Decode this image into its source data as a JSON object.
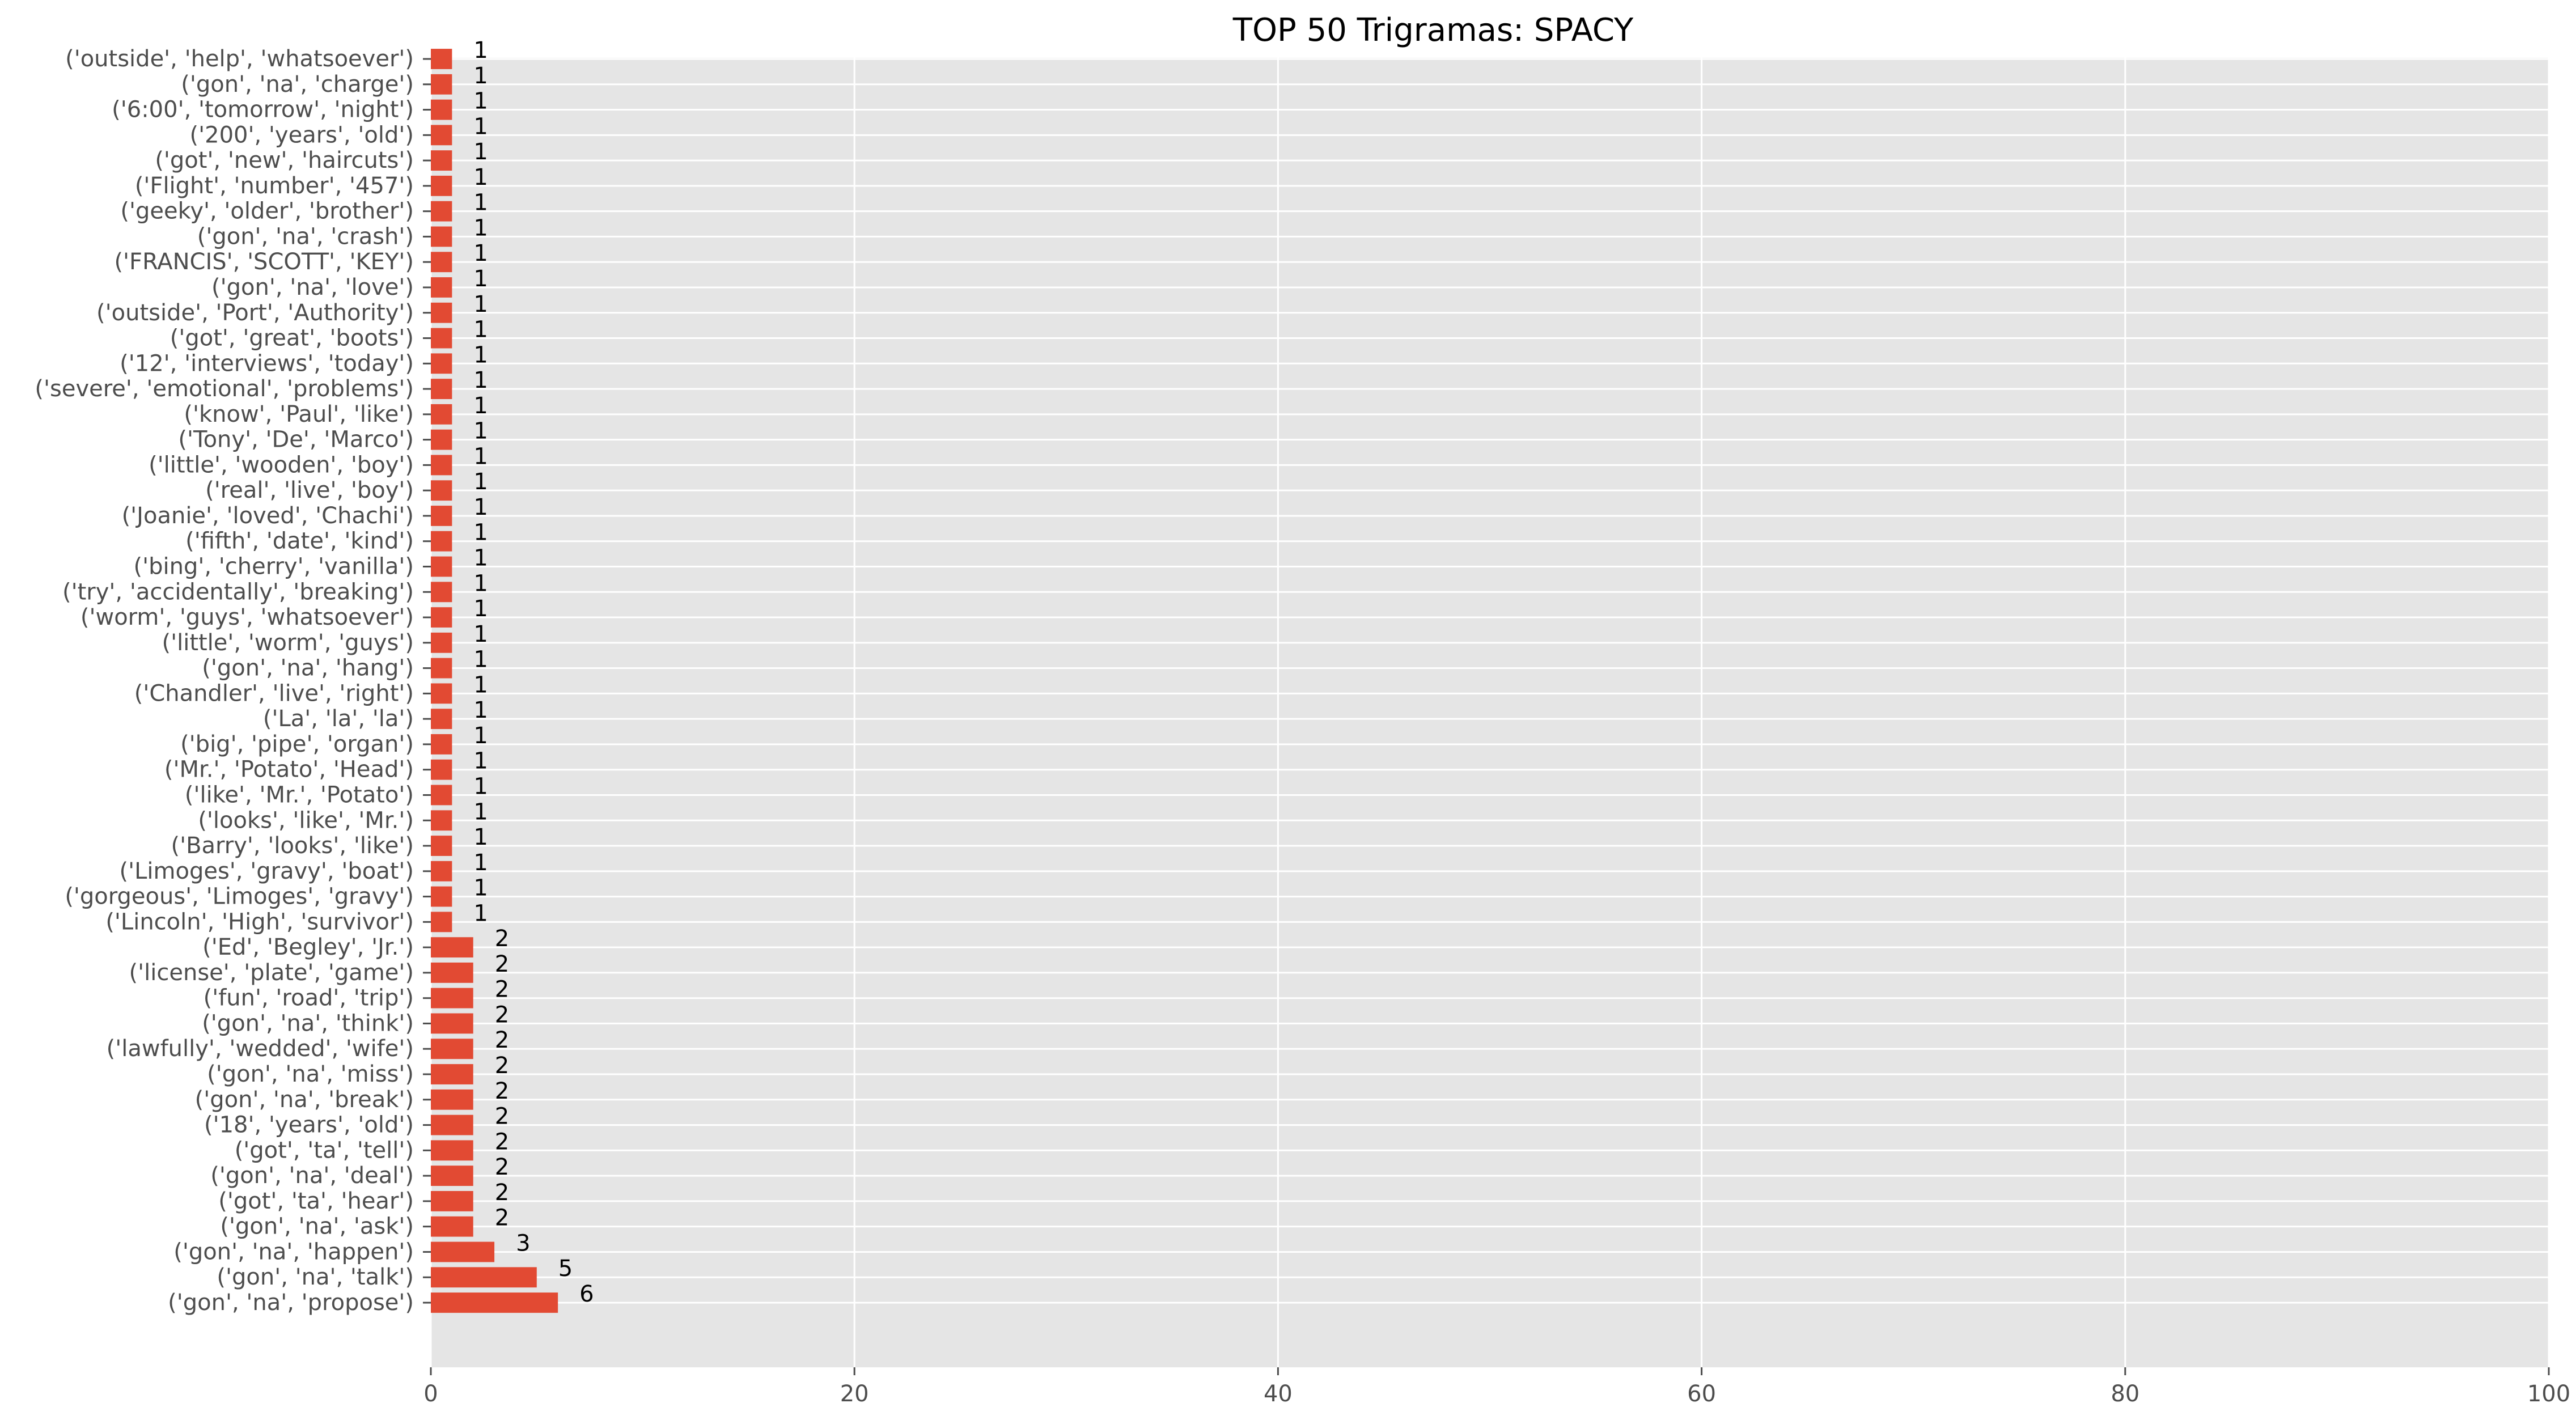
{
  "chart_data": {
    "type": "bar",
    "orientation": "horizontal",
    "title": "TOP 50 Trigramas: SPACY",
    "xlabel": "",
    "ylabel": "",
    "xlim": [
      0,
      100
    ],
    "xticks": [
      0,
      20,
      40,
      60,
      80,
      100
    ],
    "grid": true,
    "style": "ggplot",
    "bar_color": "#e24a33",
    "background_color": "#e5e5e5",
    "categories": [
      "('gon', 'na', 'propose')",
      "('gon', 'na', 'talk')",
      "('gon', 'na', 'happen')",
      "('gon', 'na', 'ask')",
      "('got', 'ta', 'hear')",
      "('gon', 'na', 'deal')",
      "('got', 'ta', 'tell')",
      "('18', 'years', 'old')",
      "('gon', 'na', 'break')",
      "('gon', 'na', 'miss')",
      "('lawfully', 'wedded', 'wife')",
      "('gon', 'na', 'think')",
      "('fun', 'road', 'trip')",
      "('license', 'plate', 'game')",
      "('Ed', 'Begley', 'Jr.')",
      "('Lincoln', 'High', 'survivor')",
      "('gorgeous', 'Limoges', 'gravy')",
      "('Limoges', 'gravy', 'boat')",
      "('Barry', 'looks', 'like')",
      "('looks', 'like', 'Mr.')",
      "('like', 'Mr.', 'Potato')",
      "('Mr.', 'Potato', 'Head')",
      "('big', 'pipe', 'organ')",
      "('La', 'la', 'la')",
      "('Chandler', 'live', 'right')",
      "('gon', 'na', 'hang')",
      "('little', 'worm', 'guys')",
      "('worm', 'guys', 'whatsoever')",
      "('try', 'accidentally', 'breaking')",
      "('bing', 'cherry', 'vanilla')",
      "('fifth', 'date', 'kind')",
      "('Joanie', 'loved', 'Chachi')",
      "('real', 'live', 'boy')",
      "('little', 'wooden', 'boy')",
      "('Tony', 'De', 'Marco')",
      "('know', 'Paul', 'like')",
      "('severe', 'emotional', 'problems')",
      "('12', 'interviews', 'today')",
      "('got', 'great', 'boots')",
      "('outside', 'Port', 'Authority')",
      "('gon', 'na', 'love')",
      "('FRANCIS', 'SCOTT', 'KEY')",
      "('gon', 'na', 'crash')",
      "('geeky', 'older', 'brother')",
      "('Flight', 'number', '457')",
      "('got', 'new', 'haircuts')",
      "('200', 'years', 'old')",
      "('6:00', 'tomorrow', 'night')",
      "('gon', 'na', 'charge')",
      "('outside', 'help', 'whatsoever')"
    ],
    "values": [
      6,
      5,
      3,
      2,
      2,
      2,
      2,
      2,
      2,
      2,
      2,
      2,
      2,
      2,
      2,
      1,
      1,
      1,
      1,
      1,
      1,
      1,
      1,
      1,
      1,
      1,
      1,
      1,
      1,
      1,
      1,
      1,
      1,
      1,
      1,
      1,
      1,
      1,
      1,
      1,
      1,
      1,
      1,
      1,
      1,
      1,
      1,
      1,
      1,
      1
    ]
  }
}
